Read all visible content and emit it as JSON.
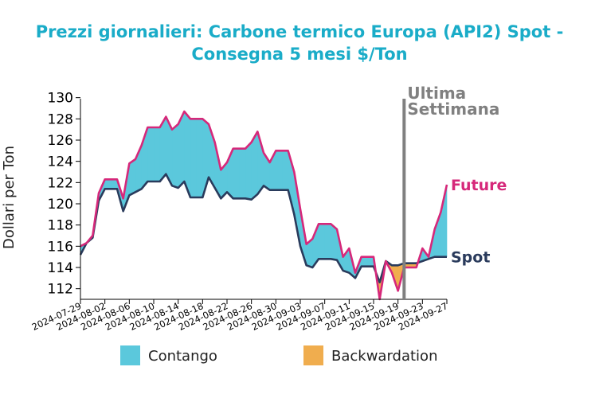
{
  "chart_data": {
    "type": "area",
    "title_line1": "Prezzi giornalieri: Carbone termico Europa (API2) Spot -",
    "title_line2": "Consegna 5 mesi $/Ton",
    "ylabel": "Dollari per Ton",
    "xlabel": "",
    "ylim": [
      111,
      130.5
    ],
    "yticks": [
      112,
      114,
      116,
      118,
      120,
      122,
      124,
      126,
      128,
      130
    ],
    "xticks": [
      "2024-07-29",
      "2024-08-02",
      "2024-08-06",
      "2024-08-10",
      "2024-08-14",
      "2024-08-18",
      "2024-08-22",
      "2024-08-26",
      "2024-08-30",
      "2024-09-03",
      "2024-09-07",
      "2024-09-11",
      "2024-09-15",
      "2024-09-19",
      "2024-09-23",
      "2024-09-27"
    ],
    "dates": [
      "2024-07-29",
      "2024-07-30",
      "2024-07-31",
      "2024-08-01",
      "2024-08-02",
      "2024-08-03",
      "2024-08-04",
      "2024-08-05",
      "2024-08-06",
      "2024-08-07",
      "2024-08-08",
      "2024-08-09",
      "2024-08-10",
      "2024-08-11",
      "2024-08-12",
      "2024-08-13",
      "2024-08-14",
      "2024-08-15",
      "2024-08-16",
      "2024-08-17",
      "2024-08-18",
      "2024-08-19",
      "2024-08-20",
      "2024-08-21",
      "2024-08-22",
      "2024-08-23",
      "2024-08-24",
      "2024-08-25",
      "2024-08-26",
      "2024-08-27",
      "2024-08-28",
      "2024-08-29",
      "2024-08-30",
      "2024-08-31",
      "2024-09-01",
      "2024-09-02",
      "2024-09-03",
      "2024-09-04",
      "2024-09-05",
      "2024-09-06",
      "2024-09-07",
      "2024-09-08",
      "2024-09-09",
      "2024-09-10",
      "2024-09-11",
      "2024-09-12",
      "2024-09-13",
      "2024-09-14",
      "2024-09-15",
      "2024-09-16",
      "2024-09-17",
      "2024-09-18",
      "2024-09-19",
      "2024-09-20",
      "2024-09-21",
      "2024-09-22",
      "2024-09-23",
      "2024-09-24",
      "2024-09-25",
      "2024-09-26",
      "2024-09-27"
    ],
    "series": [
      {
        "name": "Future",
        "color": "#d6287a",
        "values": [
          116.0,
          116.3,
          117.0,
          121.0,
          122.3,
          122.3,
          122.3,
          120.5,
          123.8,
          124.2,
          125.5,
          127.2,
          127.2,
          127.2,
          128.2,
          127.0,
          127.5,
          128.7,
          128.0,
          128.0,
          128.0,
          127.5,
          125.8,
          123.2,
          123.9,
          125.2,
          125.2,
          125.2,
          125.8,
          126.8,
          124.8,
          123.9,
          125.0,
          125.0,
          125.0,
          123.0,
          119.5,
          116.2,
          116.7,
          118.1,
          118.1,
          118.1,
          117.6,
          115.0,
          115.8,
          113.5,
          115.0,
          115.0,
          115.0,
          111.0,
          114.6,
          113.5,
          111.8,
          114.0,
          114.0,
          114.0,
          115.8,
          115.0,
          117.6,
          119.2,
          121.8
        ]
      },
      {
        "name": "Spot",
        "color": "#2a3b5c",
        "values": [
          115.2,
          116.3,
          116.8,
          120.3,
          121.4,
          121.4,
          121.4,
          119.3,
          120.8,
          121.1,
          121.4,
          122.1,
          122.1,
          122.1,
          122.8,
          121.7,
          121.5,
          122.1,
          120.6,
          120.6,
          120.6,
          122.5,
          121.5,
          120.5,
          121.1,
          120.5,
          120.5,
          120.5,
          120.4,
          120.9,
          121.7,
          121.3,
          121.3,
          121.3,
          121.3,
          119.0,
          116.0,
          114.2,
          114.0,
          114.8,
          114.8,
          114.8,
          114.7,
          113.7,
          113.5,
          113.0,
          114.1,
          114.1,
          114.1,
          112.6,
          114.6,
          114.2,
          114.2,
          114.4,
          114.4,
          114.4,
          114.6,
          114.8,
          115.0,
          115.0,
          115.0
        ]
      }
    ],
    "fill_legend": [
      {
        "label": "Contango",
        "color": "#5bc8dc"
      },
      {
        "label": "Backwardation",
        "color": "#f0ad4e"
      }
    ],
    "marker_line": {
      "date": "2024-09-20",
      "label_line1": "Ultima",
      "label_line2": "Settimana",
      "color": "#808080"
    },
    "grid": false
  }
}
